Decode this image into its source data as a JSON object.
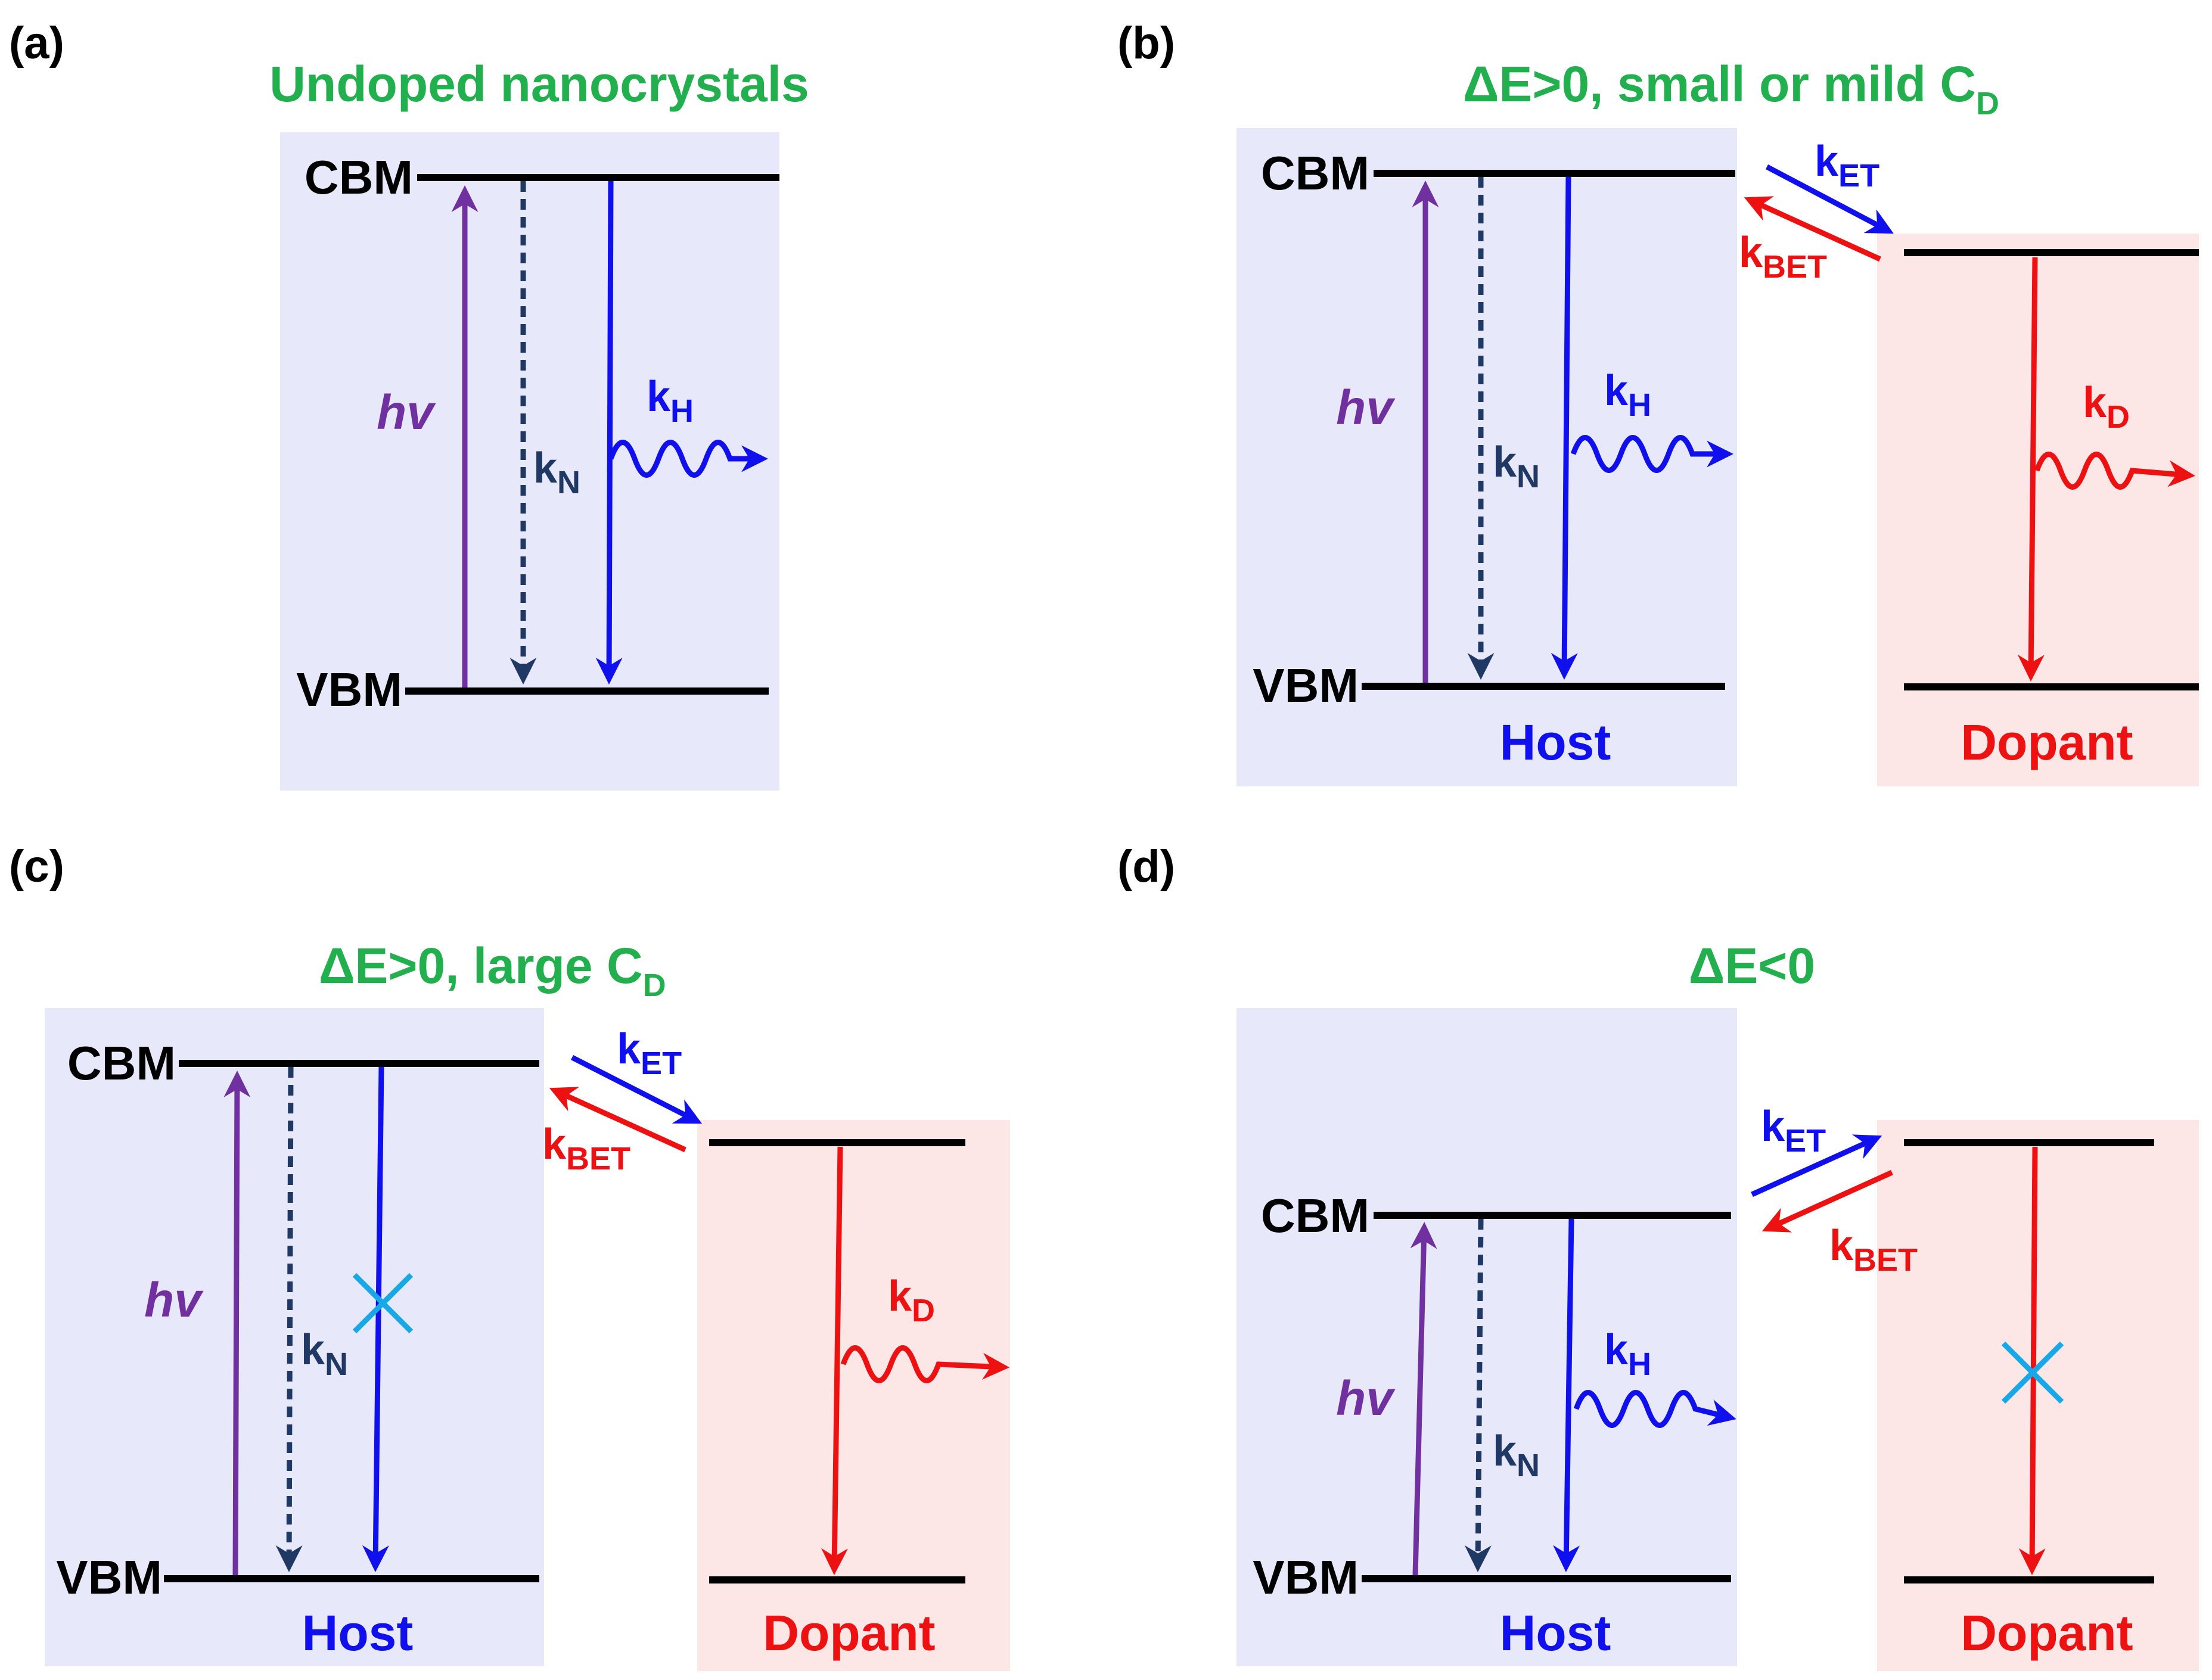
{
  "panels": {
    "a": {
      "tag": "(a)",
      "title": "Undoped nanocrystals",
      "cbm": "CBM",
      "vbm": "VBM",
      "hv": "hv",
      "kN": {
        "main": "k",
        "sub": "N"
      },
      "kH": {
        "main": "k",
        "sub": "H"
      }
    },
    "b": {
      "tag": "(b)",
      "title": {
        "main": "ΔE>0, small or mild C",
        "sub": "D"
      },
      "cbm": "CBM",
      "vbm": "VBM",
      "hv": "hv",
      "kN": {
        "main": "k",
        "sub": "N"
      },
      "kH": {
        "main": "k",
        "sub": "H"
      },
      "kET": {
        "main": "k",
        "sub": "ET"
      },
      "kBET": {
        "main": "k",
        "sub": "BET"
      },
      "kD": {
        "main": "k",
        "sub": "D"
      },
      "host": "Host",
      "dopant": "Dopant"
    },
    "c": {
      "tag": "(c)",
      "title": {
        "main": "ΔE>0, large C",
        "sub": "D"
      },
      "cbm": "CBM",
      "vbm": "VBM",
      "hv": "hv",
      "kN": {
        "main": "k",
        "sub": "N"
      },
      "kET": {
        "main": "k",
        "sub": "ET"
      },
      "kBET": {
        "main": "k",
        "sub": "BET"
      },
      "kD": {
        "main": "k",
        "sub": "D"
      },
      "host": "Host",
      "dopant": "Dopant"
    },
    "d": {
      "tag": "(d)",
      "title": "ΔE<0",
      "cbm": "CBM",
      "vbm": "VBM",
      "hv": "hv",
      "kN": {
        "main": "k",
        "sub": "N"
      },
      "kH": {
        "main": "k",
        "sub": "H"
      },
      "kET": {
        "main": "k",
        "sub": "ET"
      },
      "kBET": {
        "main": "k",
        "sub": "BET"
      },
      "host": "Host",
      "dopant": "Dopant"
    }
  },
  "colors": {
    "host_bg": "#e8e8fb",
    "dopant_bg": "#fde6e6",
    "excitation": "#7030a0",
    "nonradiative": "#1f3864",
    "host_emission": "#1010ee",
    "dopant_emission": "#ee1111",
    "blocked_mark": "#18a8e8",
    "title": "#22b04f"
  }
}
